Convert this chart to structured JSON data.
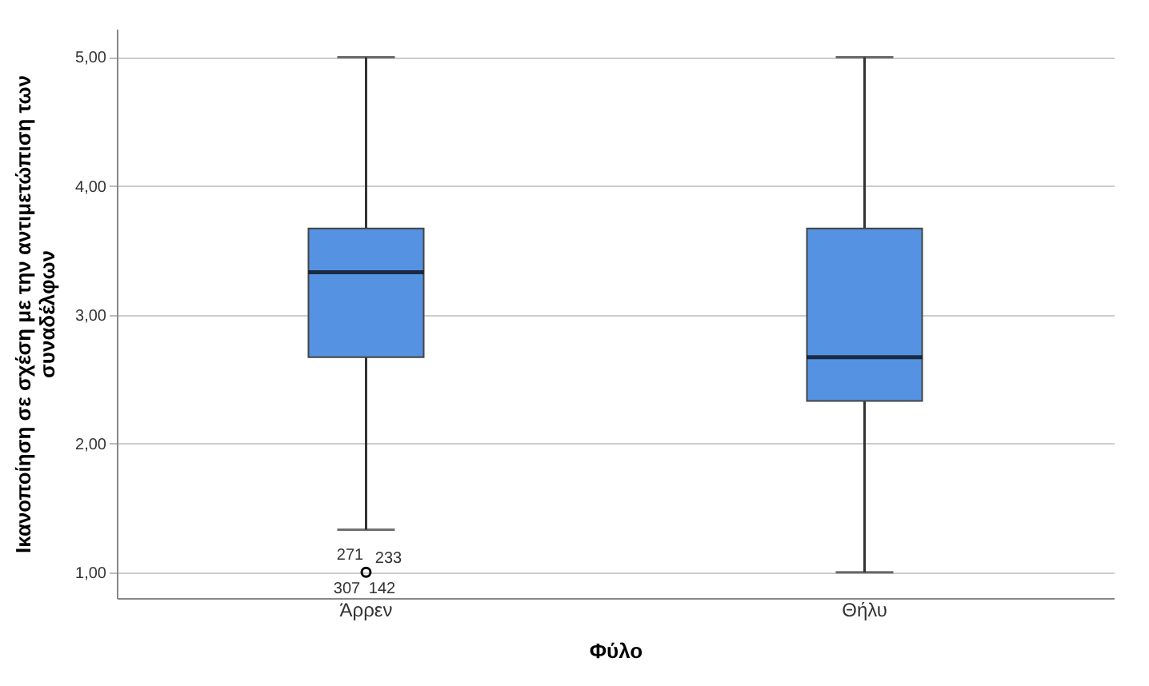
{
  "chart_data": {
    "type": "box",
    "xlabel": "Φύλο",
    "ylabel": "Ικανοποίηση σε σχέση με την αντιμετώπιση των συναδέλφων",
    "categories": [
      "Άρρεν",
      "Θήλυ"
    ],
    "series": [
      {
        "color": "#5592e2",
        "boxes": [
          {
            "low": 1.33,
            "q1": 2.67,
            "median": 3.33,
            "q3": 3.67,
            "high": 5,
            "outliers": [
              1
            ]
          },
          {
            "low": 1,
            "q1": 2.33,
            "median": 2.67,
            "q3": 3.67,
            "high": 5
          }
        ]
      }
    ],
    "ylim": [
      0.8,
      5.22
    ],
    "yticks": [
      {
        "value": 1,
        "label": "1,00"
      },
      {
        "value": 2,
        "label": "2,00"
      },
      {
        "value": 3,
        "label": "3,00"
      },
      {
        "value": 4,
        "label": "4,00"
      },
      {
        "value": 5,
        "label": "5,00"
      }
    ],
    "grid": "y",
    "annotations": [
      "271",
      "233",
      "307",
      "142"
    ]
  }
}
